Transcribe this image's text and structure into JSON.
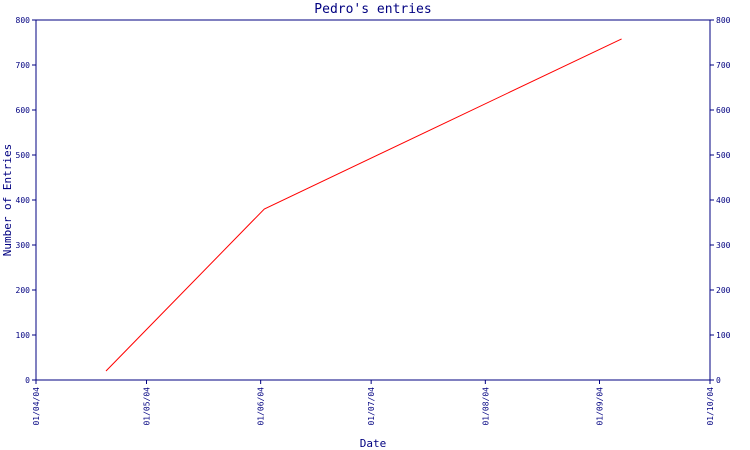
{
  "chart_data": {
    "type": "line",
    "title": "Pedro's entries",
    "xlabel": "Date",
    "ylabel": "Number of Entries",
    "x_ticks": [
      "01/04/04",
      "01/05/04",
      "01/06/04",
      "01/07/04",
      "01/08/04",
      "01/09/04",
      "01/10/04"
    ],
    "y_ticks": [
      "0",
      "100",
      "200",
      "300",
      "400",
      "500",
      "600",
      "700",
      "800"
    ],
    "ylim": [
      0,
      800
    ],
    "xlim": [
      "2004-04-01",
      "2004-10-01"
    ],
    "grid": false,
    "series": [
      {
        "color": "#ff0000",
        "points": [
          {
            "x": "2004-04-20",
            "y": 20
          },
          {
            "x": "2004-06-02",
            "y": 380
          },
          {
            "x": "2004-09-07",
            "y": 758
          }
        ]
      }
    ],
    "axis_color": "#000080"
  }
}
